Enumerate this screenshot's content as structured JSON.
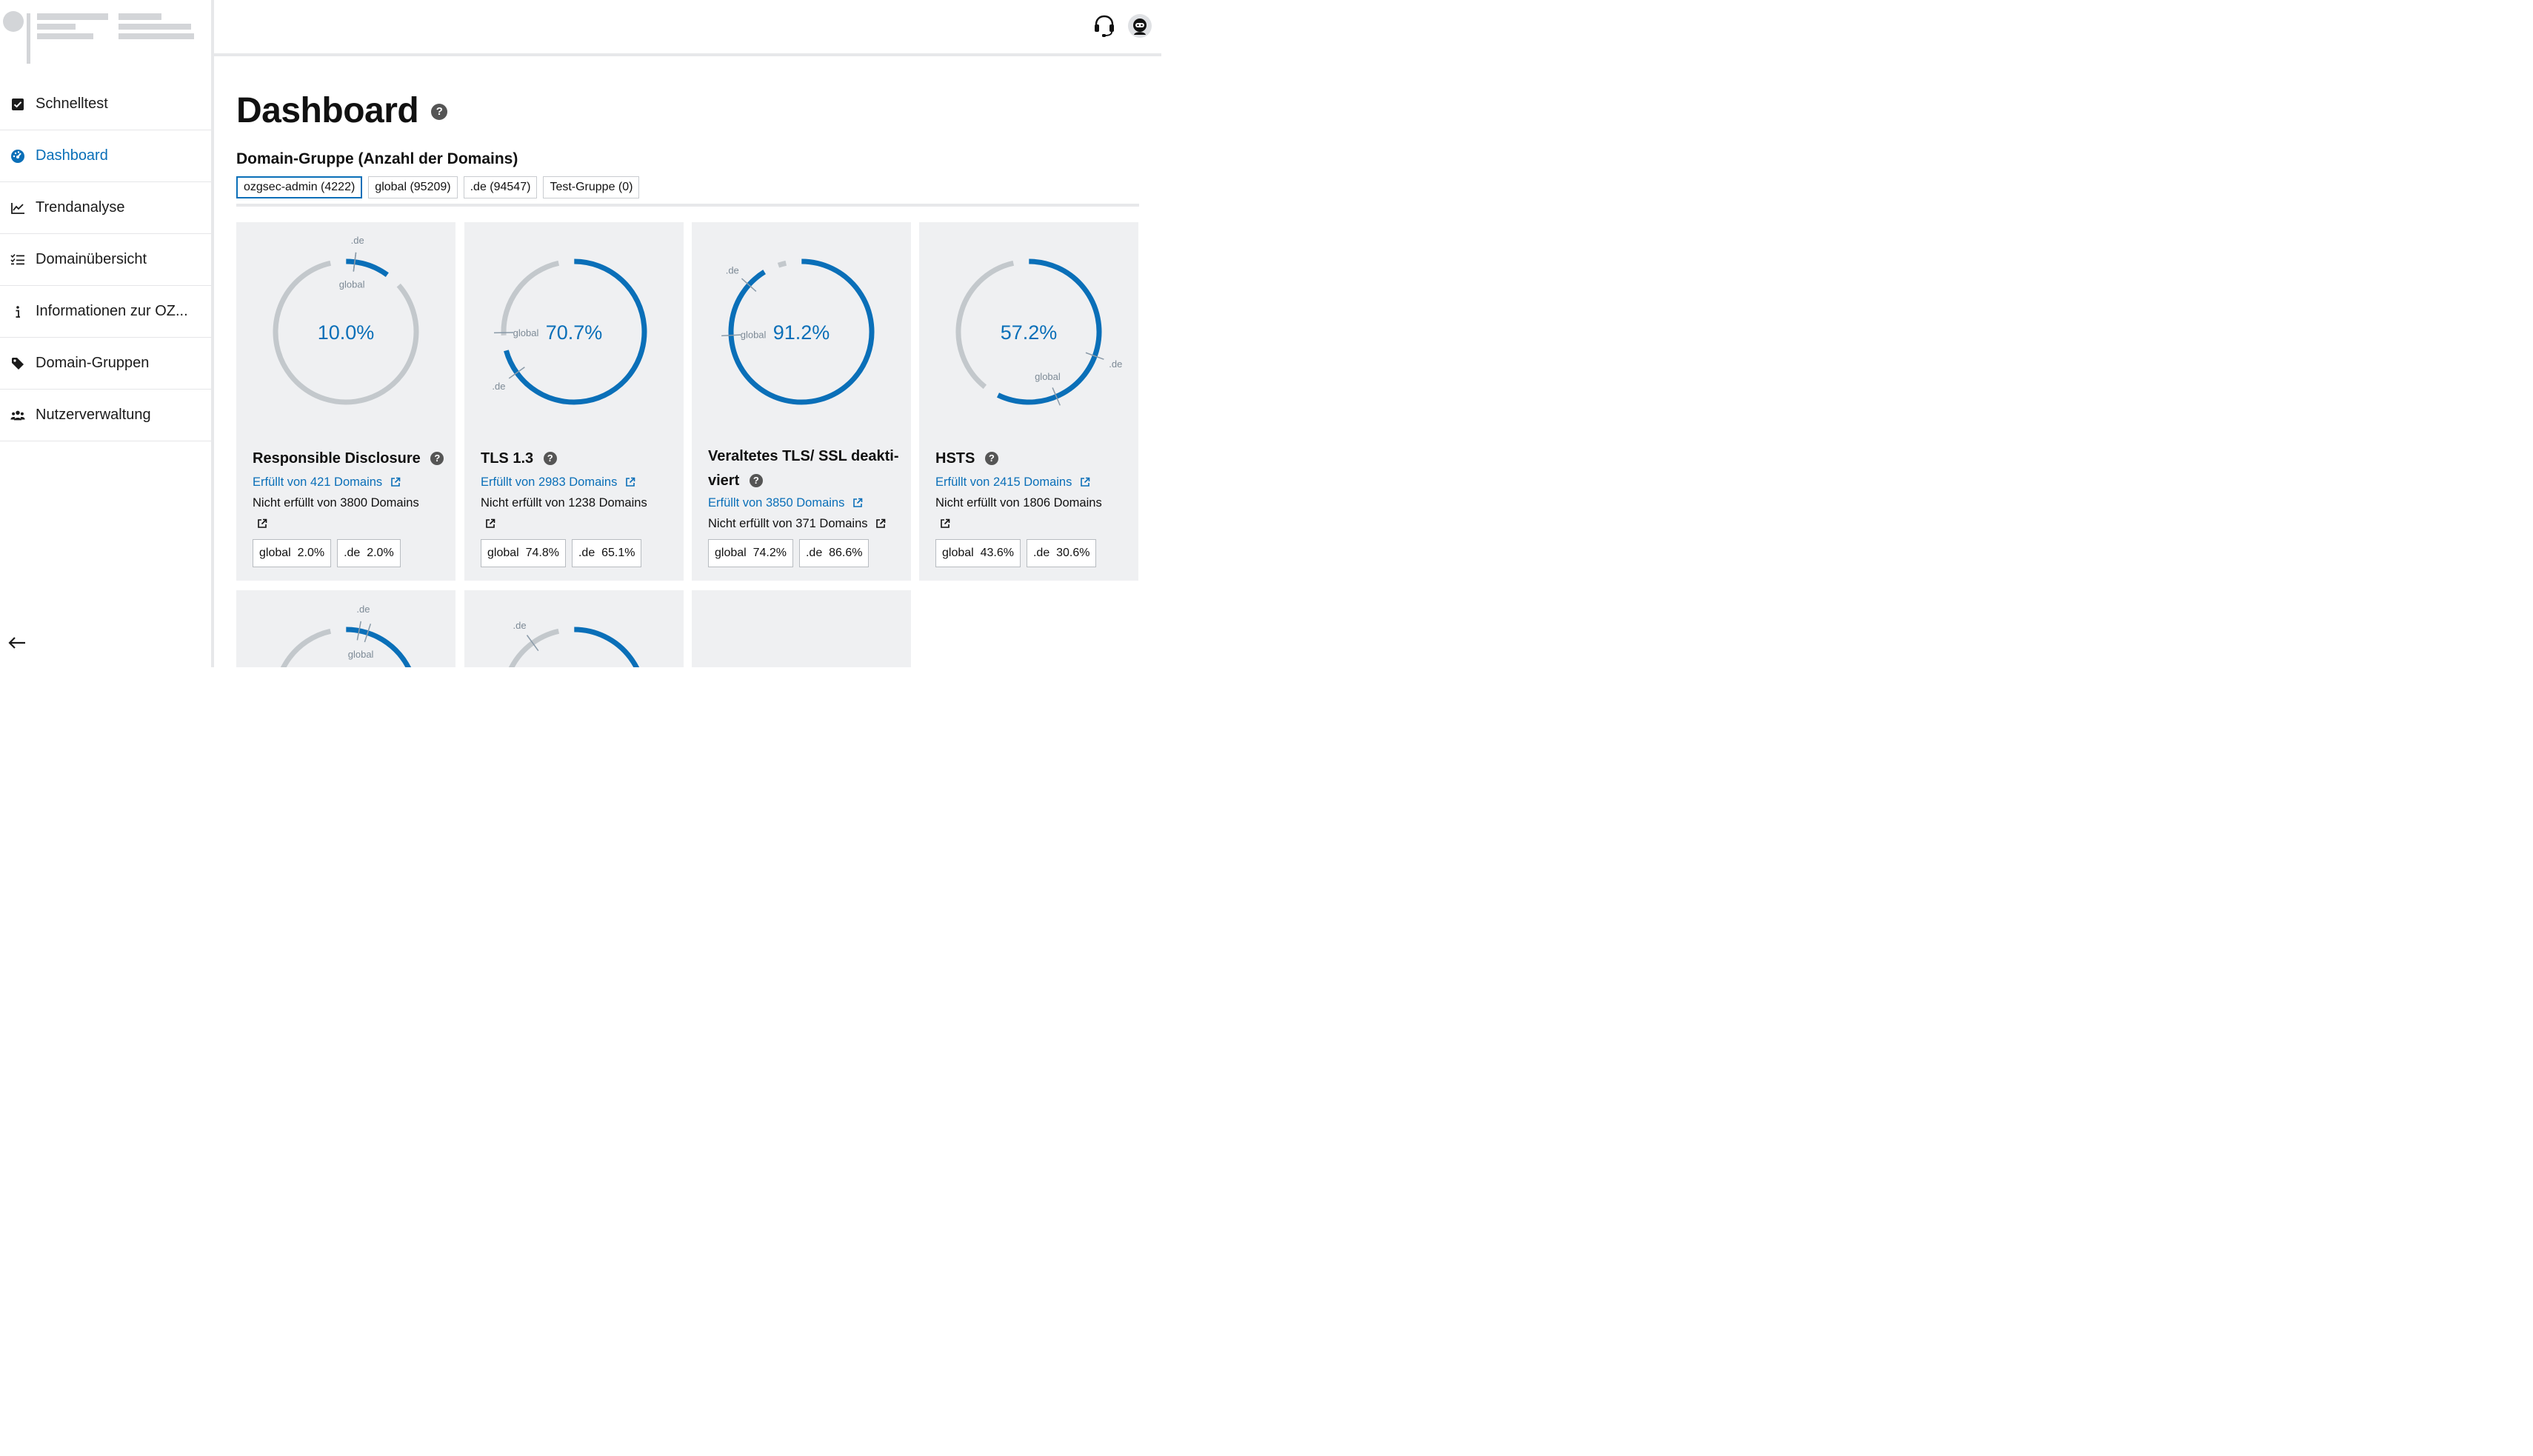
{
  "sidebar": {
    "items": [
      {
        "label": "Schnelltest",
        "icon": "checkbox-icon"
      },
      {
        "label": "Dashboard",
        "icon": "dashboard-gauge-icon",
        "active": true
      },
      {
        "label": "Trendanalyse",
        "icon": "line-chart-icon"
      },
      {
        "label": "Domainübersicht",
        "icon": "checklist-icon"
      },
      {
        "label": "Informationen zur OZ...",
        "icon": "info-icon"
      },
      {
        "label": "Domain-Gruppen",
        "icon": "tag-icon"
      },
      {
        "label": "Nutzerverwaltung",
        "icon": "users-icon"
      }
    ],
    "collapse_icon": "arrow-left-icon"
  },
  "header": {
    "support_icon": "headset-icon",
    "profile_icon": "user-avatar-icon"
  },
  "page": {
    "title": "Dashboard",
    "help": "?",
    "group_heading": "Domain-Gruppe (Anzahl der Domains)",
    "groups": [
      {
        "label": "ozgsec-admin (4222)",
        "active": true
      },
      {
        "label": "global (95209)"
      },
      {
        "label": ".de (94547)"
      },
      {
        "label": "Test-Gruppe (0)"
      }
    ]
  },
  "colors": {
    "accent": "#0a6fb8",
    "ring": "#c3c8cc",
    "card": "#eff0f2",
    "marker": "#8a9aa8"
  },
  "cards": [
    {
      "title_lines": [
        "Responsible Disclosure"
      ],
      "percent": 10.0,
      "percent_label": "10.0%",
      "global": 2.0,
      "de": 2.0,
      "fulfilled": "Erfüllt von 421 Domains",
      "not_fulfilled": "Nicht erfüllt von 3800 Domains",
      "chip_global_label": "global",
      "chip_global_value": "2.0%",
      "chip_de_label": ".de",
      "chip_de_value": "2.0%"
    },
    {
      "title_lines": [
        "TLS 1.3"
      ],
      "percent": 70.7,
      "percent_label": "70.7%",
      "global": 74.8,
      "de": 65.1,
      "fulfilled": "Erfüllt von 2983 Domains",
      "not_fulfilled": "Nicht erfüllt von 1238 Domains",
      "chip_global_label": "global",
      "chip_global_value": "74.8%",
      "chip_de_label": ".de",
      "chip_de_value": "65.1%"
    },
    {
      "title_lines": [
        "Veraltetes TLS/ SSL deakti-",
        "viert"
      ],
      "percent": 91.2,
      "percent_label": "91.2%",
      "global": 74.2,
      "de": 86.6,
      "fulfilled": "Erfüllt von 3850 Domains",
      "not_fulfilled": "Nicht erfüllt von 371 Domains",
      "chip_global_label": "global",
      "chip_global_value": "74.2%",
      "chip_de_label": ".de",
      "chip_de_value": "86.6%"
    },
    {
      "title_lines": [
        "HSTS"
      ],
      "percent": 57.2,
      "percent_label": "57.2%",
      "global": 43.6,
      "de": 30.6,
      "fulfilled": "Erfüllt von 2415 Domains",
      "not_fulfilled": "Nicht erfüllt von 1806 Domains",
      "chip_global_label": "global",
      "chip_global_value": "43.6%",
      "chip_de_label": ".de",
      "chip_de_value": "30.6%"
    }
  ],
  "partial_cards": [
    {
      "percent": 20.0,
      "global": 5.0,
      "de": 3.0
    },
    {
      "percent": 30.0,
      "de": 90.0
    },
    {}
  ],
  "marker_labels": {
    "global": "global",
    "de": ".de"
  }
}
